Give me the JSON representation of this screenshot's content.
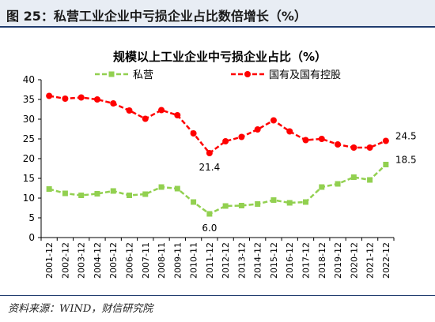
{
  "figure": {
    "title": "图 25：私营工业企业中亏损企业占比数倍增长（%）",
    "source": "资料来源：WIND，财信研究院"
  },
  "chart_data": {
    "type": "line",
    "title": "规模以上工业企业中亏损企业占比（%）",
    "xlabel": "",
    "ylabel": "",
    "ylim": [
      0,
      40
    ],
    "yticks": [
      0,
      5,
      10,
      15,
      20,
      25,
      30,
      35,
      40
    ],
    "grid": false,
    "legend_position": "top",
    "categories": [
      "2001-12",
      "2002-12",
      "2003-12",
      "2004-12",
      "2005-12",
      "2006-12",
      "2007-11",
      "2008-11",
      "2009-11",
      "2010-11",
      "2011-12",
      "2012-12",
      "2013-12",
      "2014-12",
      "2015-12",
      "2016-12",
      "2017-12",
      "2018-12",
      "2019-12",
      "2020-12",
      "2021-12",
      "2022-12"
    ],
    "series": [
      {
        "name": "私营",
        "color": "#92d050",
        "line_style": "dashed",
        "marker": "square",
        "values": [
          12.3,
          11.2,
          10.7,
          11.1,
          11.8,
          10.7,
          11.0,
          12.8,
          12.4,
          9.0,
          6.0,
          8.0,
          8.1,
          8.5,
          9.5,
          8.8,
          9.0,
          12.8,
          13.6,
          15.3,
          14.6,
          18.5
        ]
      },
      {
        "name": "国有及国有控股",
        "color": "#ff0000",
        "line_style": "dashed",
        "marker": "circle",
        "values": [
          35.9,
          35.2,
          35.5,
          35.0,
          34.0,
          32.2,
          30.1,
          32.3,
          31.0,
          26.4,
          21.4,
          24.4,
          25.5,
          27.4,
          29.7,
          26.9,
          24.7,
          25.0,
          23.6,
          22.8,
          22.8,
          24.5
        ]
      }
    ],
    "annotations": [
      {
        "series": 1,
        "index": 10,
        "text": "21.4"
      },
      {
        "series": 1,
        "index": 21,
        "text": "24.5"
      },
      {
        "series": 0,
        "index": 10,
        "text": "6.0"
      },
      {
        "series": 0,
        "index": 21,
        "text": "18.5"
      }
    ]
  }
}
